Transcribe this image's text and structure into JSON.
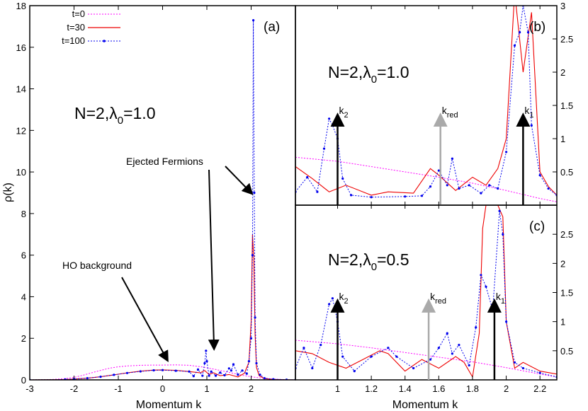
{
  "chart_data": [
    {
      "panel": "(a)",
      "type": "line",
      "xlabel": "Momentum k",
      "ylabel": "ρ(k)",
      "xlim": [
        -3,
        3
      ],
      "ylim": [
        0,
        18
      ],
      "xticks": [
        "-3",
        "-2",
        "-1",
        "0",
        "1",
        "2"
      ],
      "yticks": [
        "0",
        "2",
        "4",
        "6",
        "8",
        "10",
        "12",
        "14",
        "16",
        "18"
      ],
      "annotation_main": "N=2,λ0=1.0",
      "annotation_main_parts": [
        "N=2,λ",
        "0",
        "=1.0"
      ],
      "ejected_label": "Ejected Fermions",
      "ho_label": "HO background",
      "legend_position": "top-left",
      "series": [
        {
          "name": "t=0",
          "color": "#ff00ff",
          "x": [
            -3,
            -2.5,
            -2.2,
            -2.0,
            -1.8,
            -1.5,
            -1.2,
            -1.0,
            -0.8,
            -0.5,
            -0.2,
            0,
            0.3,
            0.6,
            0.9,
            1.2,
            1.5,
            1.8,
            2.1,
            2.4,
            2.7,
            3
          ],
          "y": [
            0,
            0.02,
            0.06,
            0.12,
            0.22,
            0.4,
            0.56,
            0.63,
            0.67,
            0.7,
            0.71,
            0.71,
            0.72,
            0.7,
            0.62,
            0.5,
            0.36,
            0.22,
            0.12,
            0.05,
            0.02,
            0
          ]
        },
        {
          "name": "t=30",
          "color": "#ee0000",
          "x": [
            -3,
            -2.2,
            -2.0,
            -1.7,
            -1.4,
            -1.1,
            -0.8,
            -0.5,
            -0.2,
            0,
            0.3,
            0.6,
            0.85,
            0.95,
            1.05,
            1.15,
            1.3,
            1.5,
            1.7,
            1.85,
            1.95,
            2.0,
            2.03,
            2.06,
            2.09,
            2.12,
            2.18,
            2.3,
            2.5,
            2.8,
            3
          ],
          "y": [
            0,
            0.02,
            0.04,
            0.08,
            0.15,
            0.24,
            0.34,
            0.42,
            0.47,
            0.48,
            0.46,
            0.4,
            0.34,
            0.45,
            0.26,
            0.34,
            0.2,
            0.26,
            0.14,
            0.32,
            0.85,
            2.8,
            7.0,
            5.8,
            2.2,
            0.6,
            0.2,
            0.06,
            0.02,
            0.005,
            0
          ]
        },
        {
          "name": "t=100",
          "color": "#0000ee",
          "x": [
            -3,
            -2.2,
            -2.0,
            -1.7,
            -1.4,
            -1.1,
            -0.8,
            -0.5,
            -0.2,
            0,
            0.3,
            0.6,
            0.7,
            0.8,
            0.9,
            0.95,
            0.98,
            1.0,
            1.05,
            1.1,
            1.2,
            1.3,
            1.4,
            1.5,
            1.55,
            1.6,
            1.7,
            1.8,
            1.9,
            1.95,
            2.0,
            2.03,
            2.05,
            2.07,
            2.09,
            2.12,
            2.2,
            2.3,
            2.5,
            2.8,
            3
          ],
          "y": [
            0,
            0.02,
            0.04,
            0.08,
            0.15,
            0.24,
            0.33,
            0.41,
            0.46,
            0.47,
            0.44,
            0.4,
            0.18,
            0.5,
            0.2,
            0.8,
            1.4,
            0.9,
            0.2,
            0.4,
            0.2,
            0.35,
            0.22,
            0.55,
            0.45,
            0.75,
            0.25,
            0.45,
            0.3,
            0.9,
            2.0,
            6.0,
            17.3,
            9.0,
            3.0,
            0.8,
            0.25,
            0.08,
            0.03,
            0.01,
            0
          ]
        }
      ]
    },
    {
      "panel": "(b)",
      "type": "line",
      "xlim": [
        0.75,
        2.3
      ],
      "ylim": [
        0,
        3
      ],
      "yticks": [
        "0.5",
        "1",
        "1.5",
        "2",
        "2.5",
        "3"
      ],
      "annotation_main": "N=2,λ0=1.0",
      "annotation_main_parts": [
        "N=2,λ",
        "0",
        "=1.0"
      ],
      "arrows": [
        {
          "label": "k2",
          "x": 1.0,
          "tip": 1.35,
          "color": "#000000"
        },
        {
          "label": "kred",
          "x": 1.61,
          "tip": 1.35,
          "color": "#aaaaaa"
        },
        {
          "label": "k1",
          "x": 2.1,
          "tip": 1.35,
          "color": "#000000"
        }
      ],
      "arrow_labels": {
        "k2": [
          "k",
          "2"
        ],
        "kred": [
          "k",
          "red"
        ],
        "k1": [
          "k",
          "1"
        ]
      },
      "series": [
        {
          "name": "t=0",
          "color": "#ff00ff",
          "x": [
            0.75,
            1.0,
            1.2,
            1.4,
            1.6,
            1.8,
            2.0,
            2.2,
            2.3
          ],
          "y": [
            0.72,
            0.66,
            0.58,
            0.5,
            0.42,
            0.33,
            0.22,
            0.1,
            0.05
          ]
        },
        {
          "name": "t=30",
          "color": "#ee0000",
          "x": [
            0.75,
            0.85,
            0.95,
            1.05,
            1.2,
            1.3,
            1.45,
            1.55,
            1.6,
            1.7,
            1.8,
            1.88,
            1.95,
            2.0,
            2.05,
            2.1,
            2.15,
            2.2,
            2.25,
            2.3
          ],
          "y": [
            0.58,
            0.4,
            0.2,
            0.3,
            0.15,
            0.2,
            0.18,
            0.55,
            0.45,
            0.22,
            0.42,
            0.3,
            0.55,
            1.0,
            3.2,
            2.0,
            2.9,
            0.5,
            0.28,
            0.15
          ]
        },
        {
          "name": "t=100",
          "color": "#0000ee",
          "x": [
            0.75,
            0.82,
            0.88,
            0.92,
            0.95,
            0.97,
            1.0,
            1.03,
            1.08,
            1.2,
            1.4,
            1.5,
            1.55,
            1.6,
            1.65,
            1.68,
            1.72,
            1.78,
            1.85,
            1.9,
            1.95,
            2.0,
            2.05,
            2.08,
            2.1,
            2.13,
            2.15,
            2.2,
            2.25,
            2.3
          ],
          "y": [
            0.2,
            0.42,
            0.2,
            0.85,
            1.3,
            1.2,
            1.0,
            0.4,
            0.15,
            0.12,
            0.13,
            0.14,
            0.28,
            0.52,
            0.3,
            0.7,
            0.25,
            0.3,
            0.18,
            0.3,
            0.25,
            0.8,
            2.4,
            2.6,
            3.0,
            2.6,
            1.2,
            0.45,
            0.25,
            0.15
          ]
        }
      ]
    },
    {
      "panel": "(c)",
      "type": "line",
      "xlabel": "Momentum k",
      "xlim": [
        0.75,
        2.3
      ],
      "ylim": [
        0,
        3
      ],
      "xticks": [
        "1",
        "1.2",
        "1.4",
        "1.6",
        "1.8",
        "2",
        "2.2"
      ],
      "yticks": [
        "0.5",
        "1",
        "1.5",
        "2",
        "2.5"
      ],
      "annotation_main": "N=2,λ0=0.5",
      "annotation_main_parts": [
        "N=2,λ",
        "0",
        "=0.5"
      ],
      "arrows": [
        {
          "label": "k2",
          "x": 1.0,
          "tip": 1.35,
          "color": "#000000"
        },
        {
          "label": "kred",
          "x": 1.54,
          "tip": 1.35,
          "color": "#aaaaaa"
        },
        {
          "label": "k1",
          "x": 1.93,
          "tip": 1.35,
          "color": "#000000"
        }
      ],
      "arrow_labels": {
        "k2": [
          "k",
          "2"
        ],
        "kred": [
          "k",
          "red"
        ],
        "k1": [
          "k",
          "1"
        ]
      },
      "series": [
        {
          "name": "t=0",
          "color": "#ff00ff",
          "x": [
            0.75,
            1.0,
            1.2,
            1.4,
            1.6,
            1.8,
            2.0,
            2.2,
            2.3
          ],
          "y": [
            0.68,
            0.62,
            0.55,
            0.47,
            0.39,
            0.31,
            0.21,
            0.1,
            0.05
          ]
        },
        {
          "name": "t=30",
          "color": "#ee0000",
          "x": [
            0.75,
            0.85,
            0.95,
            1.05,
            1.15,
            1.25,
            1.3,
            1.4,
            1.5,
            1.6,
            1.7,
            1.75,
            1.8,
            1.84,
            1.86,
            1.88,
            1.9,
            1.95,
            1.98,
            2.0,
            2.05,
            2.1,
            2.2,
            2.3
          ],
          "y": [
            0.5,
            0.45,
            0.3,
            0.2,
            0.35,
            0.5,
            0.45,
            0.15,
            0.35,
            0.2,
            0.4,
            0.3,
            0.05,
            0.8,
            2.6,
            3.0,
            3.0,
            3.0,
            2.8,
            1.0,
            0.2,
            0.3,
            0.15,
            0.1
          ]
        },
        {
          "name": "t=100",
          "color": "#0000ee",
          "x": [
            0.75,
            0.8,
            0.85,
            0.9,
            0.95,
            0.97,
            1.0,
            1.03,
            1.1,
            1.2,
            1.3,
            1.35,
            1.45,
            1.55,
            1.6,
            1.65,
            1.68,
            1.72,
            1.78,
            1.82,
            1.85,
            1.88,
            1.92,
            1.96,
            1.98,
            2.0,
            2.05,
            2.1,
            2.2,
            2.3
          ],
          "y": [
            0.2,
            0.55,
            0.2,
            0.6,
            1.3,
            1.4,
            1.0,
            0.4,
            0.15,
            0.4,
            0.55,
            0.4,
            0.2,
            0.35,
            0.55,
            0.8,
            0.45,
            0.6,
            0.25,
            0.9,
            1.8,
            1.6,
            1.2,
            2.9,
            2.5,
            1.0,
            0.3,
            0.2,
            0.12,
            0.05
          ]
        }
      ]
    }
  ]
}
